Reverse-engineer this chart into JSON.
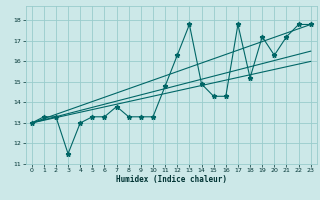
{
  "xlabel": "Humidex (Indice chaleur)",
  "ylabel": "",
  "background_color": "#cce8e8",
  "grid_color": "#99cccc",
  "line_color": "#006666",
  "xlim": [
    -0.5,
    23.5
  ],
  "ylim": [
    11,
    18.7
  ],
  "xticks": [
    0,
    1,
    2,
    3,
    4,
    5,
    6,
    7,
    8,
    9,
    10,
    11,
    12,
    13,
    14,
    15,
    16,
    17,
    18,
    19,
    20,
    21,
    22,
    23
  ],
  "yticks": [
    11,
    12,
    13,
    14,
    15,
    16,
    17,
    18
  ],
  "main_y": [
    13,
    13.3,
    13.3,
    11.5,
    13,
    13.3,
    13.3,
    13.8,
    13.3,
    13.3,
    13.3,
    14.8,
    16.3,
    17.8,
    14.9,
    14.3,
    14.3,
    17.8,
    15.2,
    17.2,
    16.3,
    17.2,
    17.8,
    17.8
  ],
  "trend1_x": [
    0,
    23
  ],
  "trend1_y": [
    13,
    17.8
  ],
  "trend2_x": [
    0,
    23
  ],
  "trend2_y": [
    13,
    16.5
  ],
  "trend3_x": [
    0,
    23
  ],
  "trend3_y": [
    13,
    16.0
  ]
}
